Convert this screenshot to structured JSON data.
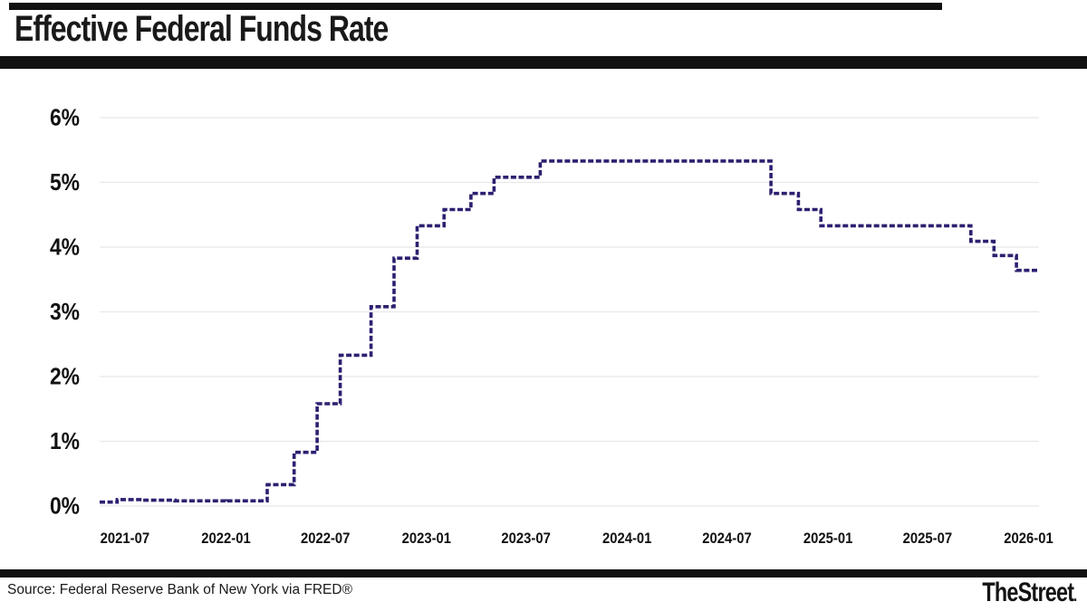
{
  "header": {
    "title": "Effective Federal Funds Rate"
  },
  "footer": {
    "source": "Source: Federal Reserve Bank of New York via FRED®",
    "brand": "TheStreet",
    "brand_dot": "."
  },
  "chart_data": {
    "type": "line",
    "subtype": "step-after",
    "title": "Effective Federal Funds Rate",
    "xlabel": "",
    "ylabel": "",
    "unit": "percent",
    "line_style": "dashed",
    "legend": false,
    "grid": true,
    "colors": {
      "line": "#2b2171",
      "grid": "#e8e8e8",
      "labels": "#111111",
      "background": "#ffffff"
    },
    "ylim": [
      0,
      6
    ],
    "y_ticks": [
      0,
      1,
      2,
      3,
      4,
      5,
      6
    ],
    "y_tick_labels": [
      "0%",
      "1%",
      "2%",
      "3%",
      "4%",
      "5%",
      "6%"
    ],
    "x_domain": [
      "2021-05-16",
      "2026-01-20"
    ],
    "x_tick_labels": [
      "2021-07",
      "2022-01",
      "2022-07",
      "2023-01",
      "2023-07",
      "2024-01",
      "2024-07",
      "2025-01",
      "2025-07",
      "2026-01"
    ],
    "series": [
      {
        "name": "Effective Federal Funds Rate (%)",
        "points": [
          {
            "date": "2021-05-16",
            "value": 0.06
          },
          {
            "date": "2021-06-17",
            "value": 0.1
          },
          {
            "date": "2021-08-02",
            "value": 0.09
          },
          {
            "date": "2021-09-30",
            "value": 0.08
          },
          {
            "date": "2021-12-31",
            "value": 0.07
          },
          {
            "date": "2022-01-03",
            "value": 0.08
          },
          {
            "date": "2022-03-17",
            "value": 0.33
          },
          {
            "date": "2022-05-05",
            "value": 0.83
          },
          {
            "date": "2022-06-16",
            "value": 1.58
          },
          {
            "date": "2022-07-28",
            "value": 2.33
          },
          {
            "date": "2022-09-22",
            "value": 3.08
          },
          {
            "date": "2022-11-03",
            "value": 3.83
          },
          {
            "date": "2022-12-15",
            "value": 4.33
          },
          {
            "date": "2023-02-02",
            "value": 4.58
          },
          {
            "date": "2023-03-23",
            "value": 4.83
          },
          {
            "date": "2023-05-04",
            "value": 5.08
          },
          {
            "date": "2023-07-27",
            "value": 5.33
          },
          {
            "date": "2024-09-19",
            "value": 4.83
          },
          {
            "date": "2024-11-08",
            "value": 4.58
          },
          {
            "date": "2024-12-19",
            "value": 4.33
          },
          {
            "date": "2025-09-18",
            "value": 4.09
          },
          {
            "date": "2025-10-30",
            "value": 3.87
          },
          {
            "date": "2025-12-10",
            "value": 3.64
          },
          {
            "date": "2026-01-20",
            "value": 3.64
          }
        ]
      }
    ]
  }
}
